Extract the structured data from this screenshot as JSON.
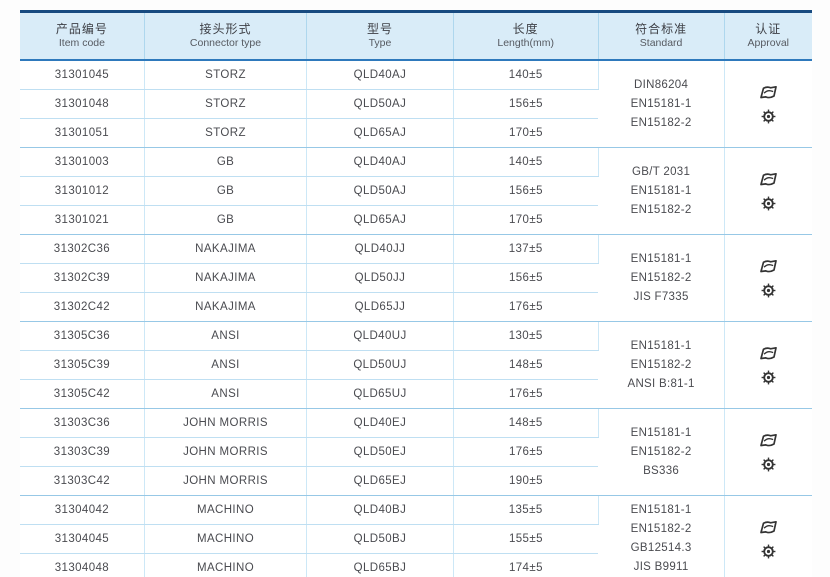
{
  "table": {
    "headers": [
      {
        "zh": "产品编号",
        "en": "Item code"
      },
      {
        "zh": "接头形式",
        "en": "Connector type"
      },
      {
        "zh": "型号",
        "en": "Type"
      },
      {
        "zh": "长度",
        "en": "Length(mm)"
      },
      {
        "zh": "符合标准",
        "en": "Standard"
      },
      {
        "zh": "认证",
        "en": "Approval"
      }
    ],
    "groups": [
      {
        "rows": [
          {
            "item_code": "31301045",
            "connector_type": "STORZ",
            "type": "QLD40AJ",
            "length": "140±5"
          },
          {
            "item_code": "31301048",
            "connector_type": "STORZ",
            "type": "QLD50AJ",
            "length": "156±5"
          },
          {
            "item_code": "31301051",
            "connector_type": "STORZ",
            "type": "QLD65AJ",
            "length": "170±5"
          }
        ],
        "standards": [
          "DIN86204",
          "EN15181-1",
          "EN15182-2"
        ],
        "approval_icons": [
          "certificate-logo-icon",
          "wheelmark-gear-icon"
        ]
      },
      {
        "rows": [
          {
            "item_code": "31301003",
            "connector_type": "GB",
            "type": "QLD40AJ",
            "length": "140±5"
          },
          {
            "item_code": "31301012",
            "connector_type": "GB",
            "type": "QLD50AJ",
            "length": "156±5"
          },
          {
            "item_code": "31301021",
            "connector_type": "GB",
            "type": "QLD65AJ",
            "length": "170±5"
          }
        ],
        "standards": [
          "GB/T 2031",
          "EN15181-1",
          "EN15182-2"
        ],
        "approval_icons": [
          "certificate-logo-icon",
          "wheelmark-gear-icon"
        ]
      },
      {
        "rows": [
          {
            "item_code": "31302C36",
            "connector_type": "NAKAJIMA",
            "type": "QLD40JJ",
            "length": "137±5"
          },
          {
            "item_code": "31302C39",
            "connector_type": "NAKAJIMA",
            "type": "QLD50JJ",
            "length": "156±5"
          },
          {
            "item_code": "31302C42",
            "connector_type": "NAKAJIMA",
            "type": "QLD65JJ",
            "length": "176±5"
          }
        ],
        "standards": [
          "EN15181-1",
          "EN15182-2",
          "JIS F7335"
        ],
        "approval_icons": [
          "certificate-logo-icon",
          "wheelmark-gear-icon"
        ]
      },
      {
        "rows": [
          {
            "item_code": "31305C36",
            "connector_type": "ANSI",
            "type": "QLD40UJ",
            "length": "130±5"
          },
          {
            "item_code": "31305C39",
            "connector_type": "ANSI",
            "type": "QLD50UJ",
            "length": "148±5"
          },
          {
            "item_code": "31305C42",
            "connector_type": "ANSI",
            "type": "QLD65UJ",
            "length": "176±5"
          }
        ],
        "standards": [
          "EN15181-1",
          "EN15182-2",
          "ANSI B:81-1"
        ],
        "approval_icons": [
          "certificate-logo-icon",
          "wheelmark-gear-icon"
        ]
      },
      {
        "rows": [
          {
            "item_code": "31303C36",
            "connector_type": "JOHN MORRIS",
            "type": "QLD40EJ",
            "length": "148±5"
          },
          {
            "item_code": "31303C39",
            "connector_type": "JOHN MORRIS",
            "type": "QLD50EJ",
            "length": "176±5"
          },
          {
            "item_code": "31303C42",
            "connector_type": "JOHN MORRIS",
            "type": "QLD65EJ",
            "length": "190±5"
          }
        ],
        "standards": [
          "EN15181-1",
          "EN15182-2",
          "BS336"
        ],
        "approval_icons": [
          "certificate-logo-icon",
          "wheelmark-gear-icon"
        ]
      },
      {
        "rows": [
          {
            "item_code": "31304042",
            "connector_type": "MACHINO",
            "type": "QLD40BJ",
            "length": "135±5"
          },
          {
            "item_code": "31304045",
            "connector_type": "MACHINO",
            "type": "QLD50BJ",
            "length": "155±5"
          },
          {
            "item_code": "31304048",
            "connector_type": "MACHINO",
            "type": "QLD65BJ",
            "length": "174±5"
          }
        ],
        "standards": [
          "EN15181-1",
          "EN15182-2",
          "GB12514.3",
          "JIS B9911"
        ],
        "approval_icons": [
          "certificate-logo-icon",
          "wheelmark-gear-icon"
        ]
      }
    ]
  },
  "colors": {
    "header_bg": "#d9ecf8",
    "outer_border_top": "#174a80",
    "outer_border_bottom": "#1d5fa7",
    "header_rule": "#2e79bc",
    "row_line": "#bfdff2",
    "group_line": "#97c8e6",
    "column_line": "#cde8f7",
    "text": "#4a4b50",
    "icon": "#333333"
  }
}
